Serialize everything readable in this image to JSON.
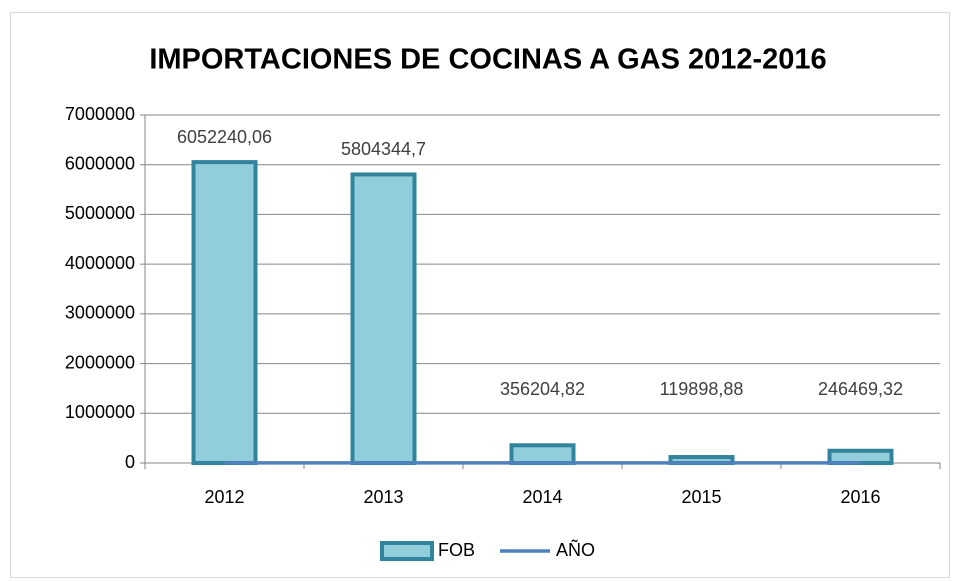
{
  "chart_data": {
    "type": "bar",
    "title": "IMPORTACIONES DE COCINAS A GAS 2012-2016",
    "categories": [
      "2012",
      "2013",
      "2014",
      "2015",
      "2016"
    ],
    "series": [
      {
        "name": "FOB",
        "type": "bar",
        "color": "#92cddc",
        "edge_color": "#31849b",
        "values": [
          6052240.06,
          5804344.7,
          356204.82,
          119898.88,
          246469.32
        ],
        "value_labels": [
          "6052240,06",
          "5804344,7",
          "356204,82",
          "119898,88",
          "246469,32"
        ]
      },
      {
        "name": "AÑO",
        "type": "line",
        "color": "#4f81bd",
        "values": [
          2012,
          2013,
          2014,
          2015,
          2016
        ]
      }
    ],
    "ylim": [
      0,
      7000000
    ],
    "yticks": [
      0,
      1000000,
      2000000,
      3000000,
      4000000,
      5000000,
      6000000,
      7000000
    ],
    "grid": true,
    "legend": "bottom"
  }
}
